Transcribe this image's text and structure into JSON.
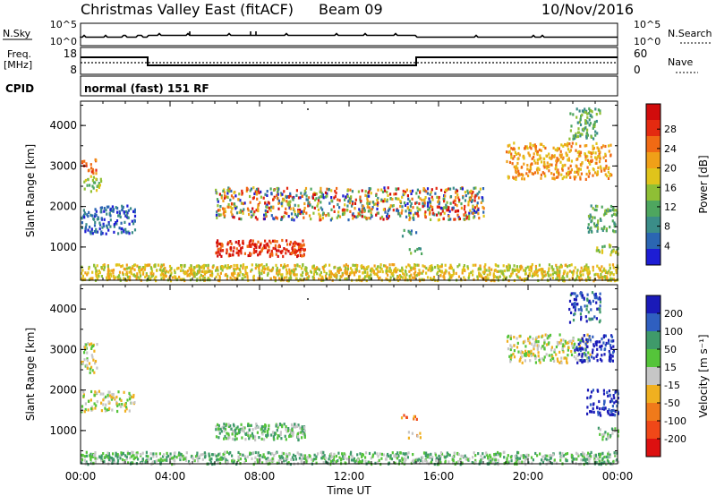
{
  "header": {
    "station": "Christmas Valley East (fitACF)",
    "beam": "Beam 09",
    "date": "10/Nov/2016"
  },
  "strips": {
    "nsky_label": "N.Sky",
    "nsearch_label": "N.Search",
    "nsky_ticks": [
      "10^5",
      "10^0"
    ],
    "nsearch_ticks": [
      "10^5",
      "10^0"
    ],
    "freq_label_top": "Freq.",
    "freq_label_bot": "[MHz]",
    "freq_ticks": [
      "18",
      "8"
    ],
    "nave_label": "Nave",
    "nave_ticks": [
      "60",
      "0"
    ],
    "cpid_label": "CPID",
    "cpid_text": "normal (fast) 151 RF"
  },
  "chart_data": [
    {
      "type": "heatmap",
      "name": "power-panel",
      "ylabel": "Slant Range [km]",
      "ylim": [
        180,
        4600
      ],
      "yticks": [
        1000,
        2000,
        3000,
        4000
      ],
      "x_tick_labels": [
        "00:00",
        "04:00",
        "08:00",
        "12:00",
        "16:00",
        "20:00",
        "00:00"
      ],
      "colorbar": {
        "label": "Power [dB]",
        "ticks": [
          "4",
          "8",
          "12",
          "16",
          "20",
          "24",
          "28"
        ],
        "colors": [
          "#1d1dd4",
          "#2b66b2",
          "#3b8d88",
          "#4ea65f",
          "#8fbf35",
          "#e0c41b",
          "#f0a018",
          "#f06a14",
          "#e42a10",
          "#d10c0c"
        ]
      },
      "regions": [
        {
          "x0": 0.0,
          "x1": 0.7,
          "y0": 2850,
          "y1": 3200,
          "c": 7
        },
        {
          "x0": 0.1,
          "x1": 0.9,
          "y0": 2400,
          "y1": 2800,
          "c": 4
        },
        {
          "x0": 0.0,
          "x1": 2.5,
          "y0": 1350,
          "y1": 2050,
          "c": 1
        },
        {
          "x0": 6.0,
          "x1": 10.0,
          "y0": 800,
          "y1": 1200,
          "c": 8
        },
        {
          "x0": 14.3,
          "x1": 15.0,
          "y0": 1300,
          "y1": 1450,
          "c": 2
        },
        {
          "x0": 14.6,
          "x1": 15.2,
          "y0": 850,
          "y1": 1000,
          "c": 3
        },
        {
          "x0": 19.0,
          "x1": 23.7,
          "y0": 2700,
          "y1": 3600,
          "c": 6
        },
        {
          "x0": 21.8,
          "x1": 23.2,
          "y0": 3700,
          "y1": 4450,
          "c": 3
        },
        {
          "x0": 22.6,
          "x1": 24.0,
          "y0": 1400,
          "y1": 2050,
          "c": 3
        },
        {
          "x0": 23.0,
          "x1": 24.0,
          "y0": 800,
          "y1": 1100,
          "c": 4
        },
        {
          "x0": 0.0,
          "x1": 24.0,
          "y0": 200,
          "y1": 600,
          "c": 5
        },
        {
          "x0": 6.0,
          "x1": 18.0,
          "y0": 1700,
          "y1": 2500,
          "c": 1
        }
      ]
    },
    {
      "type": "heatmap",
      "name": "velocity-panel",
      "ylabel": "Slant Range [km]",
      "xlabel": "Time UT",
      "ylim": [
        180,
        4600
      ],
      "yticks": [
        1000,
        2000,
        3000,
        4000
      ],
      "x_tick_labels": [
        "00:00",
        "04:00",
        "08:00",
        "12:00",
        "16:00",
        "20:00",
        "00:00"
      ],
      "colorbar": {
        "label": "Velocity [m s⁻¹]",
        "ticks": [
          "200",
          "100",
          "50",
          "15",
          "-15",
          "-50",
          "-100",
          "-200"
        ],
        "colors": [
          "#1a1ab8",
          "#2f5fc0",
          "#3f9a6a",
          "#55c43a",
          "#c6c6c6",
          "#f0b020",
          "#f07a1a",
          "#f04818",
          "#dd1010"
        ]
      },
      "regions": [
        {
          "x0": 0.0,
          "x1": 0.7,
          "y0": 2450,
          "y1": 3200,
          "c": 4
        },
        {
          "x0": 0.0,
          "x1": 2.4,
          "y0": 1500,
          "y1": 2000,
          "c": 4
        },
        {
          "x0": 6.0,
          "x1": 10.0,
          "y0": 800,
          "y1": 1200,
          "c": 3
        },
        {
          "x0": 14.3,
          "x1": 15.0,
          "y0": 1300,
          "y1": 1450,
          "c": 6
        },
        {
          "x0": 14.6,
          "x1": 15.2,
          "y0": 850,
          "y1": 1000,
          "c": 5
        },
        {
          "x0": 19.0,
          "x1": 22.8,
          "y0": 2700,
          "y1": 3400,
          "c": 4
        },
        {
          "x0": 22.0,
          "x1": 23.8,
          "y0": 2700,
          "y1": 3400,
          "c": 0
        },
        {
          "x0": 21.8,
          "x1": 23.2,
          "y0": 3700,
          "y1": 4450,
          "c": 1
        },
        {
          "x0": 22.6,
          "x1": 24.0,
          "y0": 1400,
          "y1": 2050,
          "c": 0
        },
        {
          "x0": 23.0,
          "x1": 24.0,
          "y0": 800,
          "y1": 1100,
          "c": 3
        },
        {
          "x0": 0.0,
          "x1": 24.0,
          "y0": 200,
          "y1": 500,
          "c": 3
        }
      ]
    }
  ]
}
